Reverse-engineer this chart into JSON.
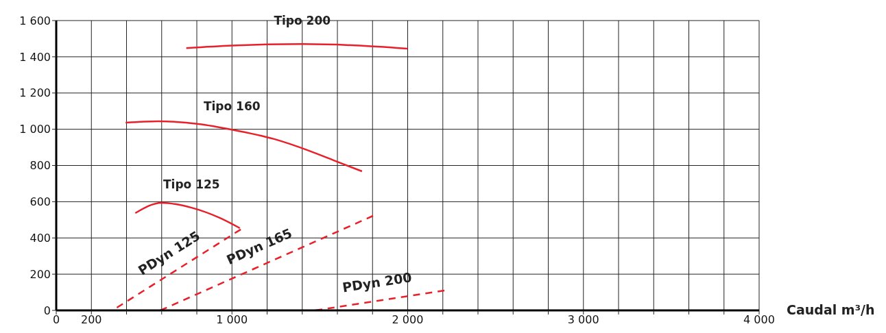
{
  "chart_data": {
    "type": "line",
    "xlabel": "Caudal m³/h",
    "xlim": [
      0,
      4000
    ],
    "xticks": [
      0,
      200,
      {
        "value": 400,
        "label": null
      },
      {
        "value": 600,
        "label": null
      },
      {
        "value": 800,
        "label": null
      },
      {
        "value": 1000,
        "label": "1 000"
      },
      {
        "value": 1200,
        "label": null
      },
      {
        "value": 1400,
        "label": null
      },
      {
        "value": 1600,
        "label": null
      },
      {
        "value": 1800,
        "label": null
      },
      {
        "value": 2000,
        "label": "2 000"
      },
      {
        "value": 2200,
        "label": null
      },
      {
        "value": 2400,
        "label": null
      },
      {
        "value": 2600,
        "label": null
      },
      {
        "value": 2800,
        "label": null
      },
      {
        "value": 3000,
        "label": "3 000"
      },
      {
        "value": 3200,
        "label": null
      },
      {
        "value": 3400,
        "label": null
      },
      {
        "value": 3600,
        "label": null
      },
      {
        "value": 3800,
        "label": null
      },
      {
        "value": 4000,
        "label": "4 000"
      }
    ],
    "ylim": [
      0,
      1600
    ],
    "yticks": [
      0,
      200,
      400,
      600,
      800,
      {
        "value": 1000,
        "label": "1 000"
      },
      {
        "value": 1200,
        "label": "1 200"
      },
      {
        "value": 1400,
        "label": "1 400"
      },
      {
        "value": 1600,
        "label": "1 600"
      }
    ],
    "grid": true,
    "legend": false,
    "marker": "none",
    "series": [
      {
        "name": "Tipo 200",
        "color": "#e8202a",
        "line_style": "solid",
        "x": [
          740,
          1000,
          1400,
          1700,
          2000
        ],
        "values": [
          1448,
          1462,
          1470,
          1463,
          1445
        ]
      },
      {
        "name": "Tipo 160",
        "color": "#e8202a",
        "line_style": "solid",
        "x": [
          395,
          580,
          810,
          1000,
          1240,
          1440,
          1590,
          1740
        ],
        "values": [
          1036,
          1044,
          1029,
          998,
          946,
          881,
          824,
          768
        ]
      },
      {
        "name": "Tipo 125",
        "color": "#e8202a",
        "line_style": "solid",
        "x": [
          450,
          600,
          770,
          930,
          1045
        ],
        "values": [
          537,
          594,
          567,
          511,
          454
        ]
      },
      {
        "name": "PDyn 125",
        "color": "#e8202a",
        "line_style": "dashed",
        "x": [
          345,
          1050
        ],
        "values": [
          15,
          447
        ]
      },
      {
        "name": "PDyn 165",
        "color": "#e8202a",
        "line_style": "dashed",
        "x": [
          593,
          1803
        ],
        "values": [
          0,
          522
        ]
      },
      {
        "name": "PDyn 200",
        "color": "#e8202a",
        "line_style": "dashed",
        "x": [
          1475,
          2209
        ],
        "values": [
          0,
          110
        ]
      }
    ]
  }
}
